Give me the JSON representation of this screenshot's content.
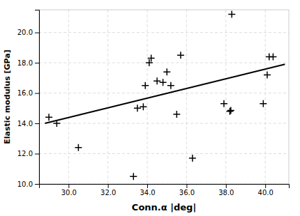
{
  "chart_data": {
    "type": "scatter",
    "xlabel": "Conn.α |deg|",
    "ylabel": "Elastic modulus [GPa]",
    "series": [
      {
        "type": "scatter",
        "marker": "plus",
        "color": "#000000",
        "x": [
          29.0,
          29.4,
          30.5,
          33.3,
          33.5,
          33.8,
          33.9,
          34.1,
          34.2,
          34.5,
          34.8,
          35.0,
          35.2,
          35.5,
          35.7,
          36.3,
          37.9,
          38.2,
          38.25,
          38.3,
          39.9,
          40.1,
          40.2,
          40.4
        ],
        "values": [
          14.4,
          14.0,
          12.4,
          10.5,
          15.0,
          15.1,
          16.5,
          18.0,
          18.3,
          16.8,
          16.7,
          17.4,
          16.5,
          14.6,
          18.5,
          11.7,
          15.3,
          14.8,
          14.85,
          21.2,
          15.3,
          17.2,
          18.4,
          18.4
        ]
      },
      {
        "type": "line",
        "line_style": "solid",
        "color": "#000000",
        "x": [
          28.8,
          41.0
        ],
        "values": [
          14.0,
          17.9
        ]
      }
    ],
    "xlim": [
      28.5,
      41.2
    ],
    "ylim": [
      10.0,
      21.5
    ],
    "xticks": [
      {
        "value": 30.0,
        "label": "30.0"
      },
      {
        "value": 32.0,
        "label": "32.0"
      },
      {
        "value": 34.0,
        "label": "34.0"
      },
      {
        "value": 36.0,
        "label": "36.0"
      },
      {
        "value": 38.0,
        "label": "38.0"
      },
      {
        "value": 40.0,
        "label": "40.0"
      }
    ],
    "yticks": [
      {
        "value": 10.0,
        "label": "10.0"
      },
      {
        "value": 12.0,
        "label": "12.0"
      },
      {
        "value": 14.0,
        "label": "14.0"
      },
      {
        "value": 16.0,
        "label": "16.0"
      },
      {
        "value": 18.0,
        "label": "18.0"
      },
      {
        "value": 20.0,
        "label": "20.0"
      }
    ],
    "grid": true
  }
}
